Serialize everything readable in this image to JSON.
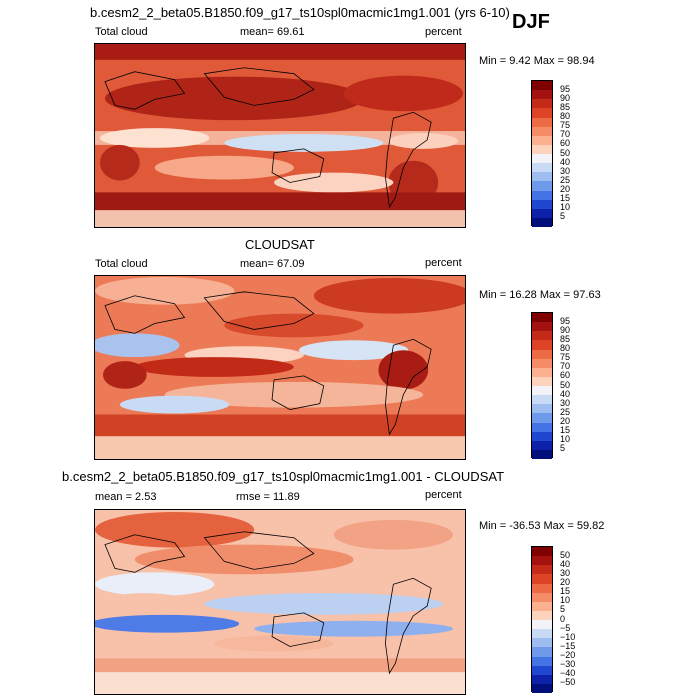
{
  "season": "DJF",
  "panels": [
    {
      "title": "b.cesm2_2_beta05.B1850.f09_g17_ts10spl0macmic1mg1.001 (yrs 6-10)",
      "variable": "Total cloud",
      "stat_text": "mean=  69.61",
      "units": "percent",
      "minmax": "Min =    9.42  Max =   98.94",
      "colorbar_labels": [
        "95",
        "90",
        "85",
        "80",
        "75",
        "70",
        "60",
        "50",
        "40",
        "30",
        "25",
        "20",
        "15",
        "10",
        "5"
      ],
      "colorbar_colors": [
        "#7f0000",
        "#a3120f",
        "#c42a18",
        "#dd4426",
        "#ec6a44",
        "#f58c68",
        "#fbb090",
        "#fdd3bd",
        "#f2f2f8",
        "#c9daf4",
        "#9dbcf0",
        "#6f99eb",
        "#4373e4",
        "#1f47cf",
        "#0d22a8",
        "#010f7a"
      ]
    },
    {
      "title": "CLOUDSAT",
      "variable": "Total cloud",
      "stat_text": "mean=  67.09",
      "units": "percent",
      "minmax": "Min =   16.28  Max =   97.63",
      "colorbar_labels": [
        "95",
        "90",
        "85",
        "80",
        "75",
        "70",
        "60",
        "50",
        "40",
        "30",
        "25",
        "20",
        "15",
        "10",
        "5"
      ],
      "colorbar_colors": [
        "#7f0000",
        "#a3120f",
        "#c42a18",
        "#dd4426",
        "#ec6a44",
        "#f58c68",
        "#fbb090",
        "#fdd3bd",
        "#f2f2f8",
        "#c9daf4",
        "#9dbcf0",
        "#6f99eb",
        "#4373e4",
        "#1f47cf",
        "#0d22a8",
        "#010f7a"
      ]
    },
    {
      "title": "b.cesm2_2_beta05.B1850.f09_g17_ts10spl0macmic1mg1.001 - CLOUDSAT",
      "stat_text": "mean =    2.53",
      "stat2_text": "rmse =   11.89",
      "units": "percent",
      "minmax": "Min = -36.53  Max =   59.82",
      "colorbar_labels": [
        "50",
        "40",
        "30",
        "20",
        "15",
        "10",
        "5",
        "0",
        "−5",
        "−10",
        "−15",
        "−20",
        "−30",
        "−40",
        "−50"
      ],
      "colorbar_colors": [
        "#7f0000",
        "#a3120f",
        "#c42a18",
        "#dd4426",
        "#ec6a44",
        "#f58c68",
        "#fbb090",
        "#fdd3bd",
        "#f2f2f8",
        "#c9daf4",
        "#9dbcf0",
        "#6f99eb",
        "#4373e4",
        "#1f47cf",
        "#0d22a8",
        "#010f7a"
      ]
    }
  ]
}
